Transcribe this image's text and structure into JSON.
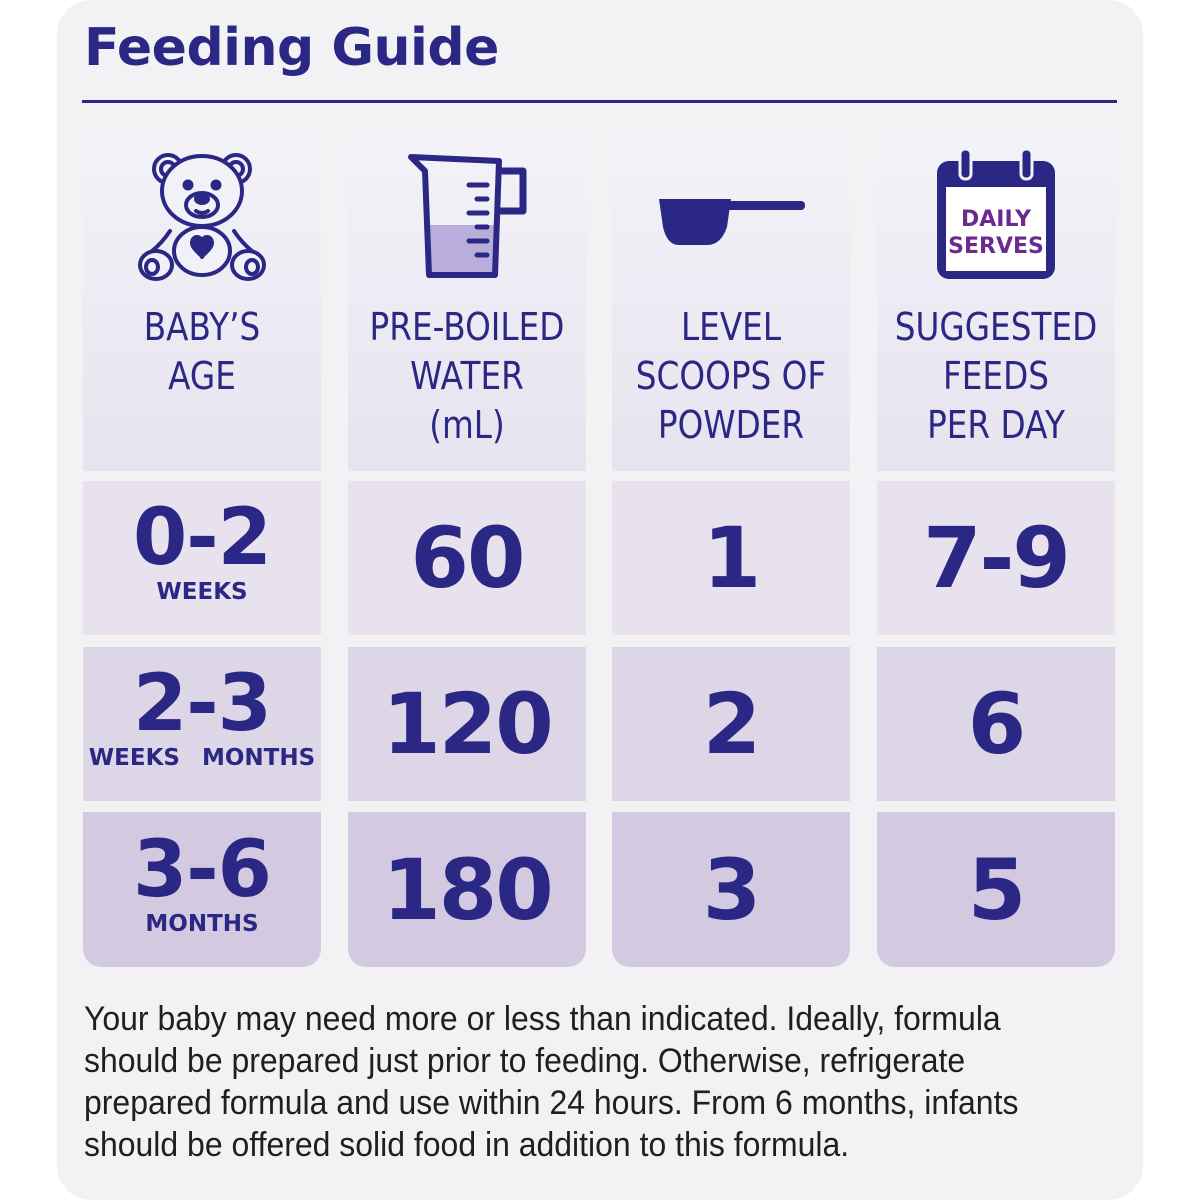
{
  "title": "Feeding Guide",
  "columns": [
    {
      "label_lines": [
        "BABY’S",
        "AGE"
      ],
      "icon": "teddy-bear-icon"
    },
    {
      "label_lines": [
        "PRE-BOILED",
        "WATER",
        "(mL)"
      ],
      "icon": "measuring-jug-icon"
    },
    {
      "label_lines": [
        "LEVEL",
        "SCOOPS OF",
        "POWDER"
      ],
      "icon": "scoop-icon"
    },
    {
      "label_lines": [
        "SUGGESTED",
        "FEEDS",
        "PER DAY"
      ],
      "icon": "calendar-icon",
      "icon_text": [
        "DAILY",
        "SERVES"
      ]
    }
  ],
  "rows": [
    {
      "age": "0-2",
      "age_unit": "WEEKS",
      "water": "60",
      "scoops": "1",
      "feeds": "7-9"
    },
    {
      "age": "2-3",
      "age_unit_left": "WEEKS",
      "age_unit_right": "MONTHS",
      "water": "120",
      "scoops": "2",
      "feeds": "6"
    },
    {
      "age": "3-6",
      "age_unit": "MONTHS",
      "water": "180",
      "scoops": "3",
      "feeds": "5"
    }
  ],
  "note": "Your baby may need more or less than indicated. Ideally, formula should be prepared just prior to feeding. Otherwise, refrigerate prepared formula and use within 24 hours. From 6 months, infants should be offered solid food in addition to this formula.",
  "colors": {
    "primary": "#2b2784",
    "accent": "#6a2a8f",
    "water": "#b9aedb"
  }
}
